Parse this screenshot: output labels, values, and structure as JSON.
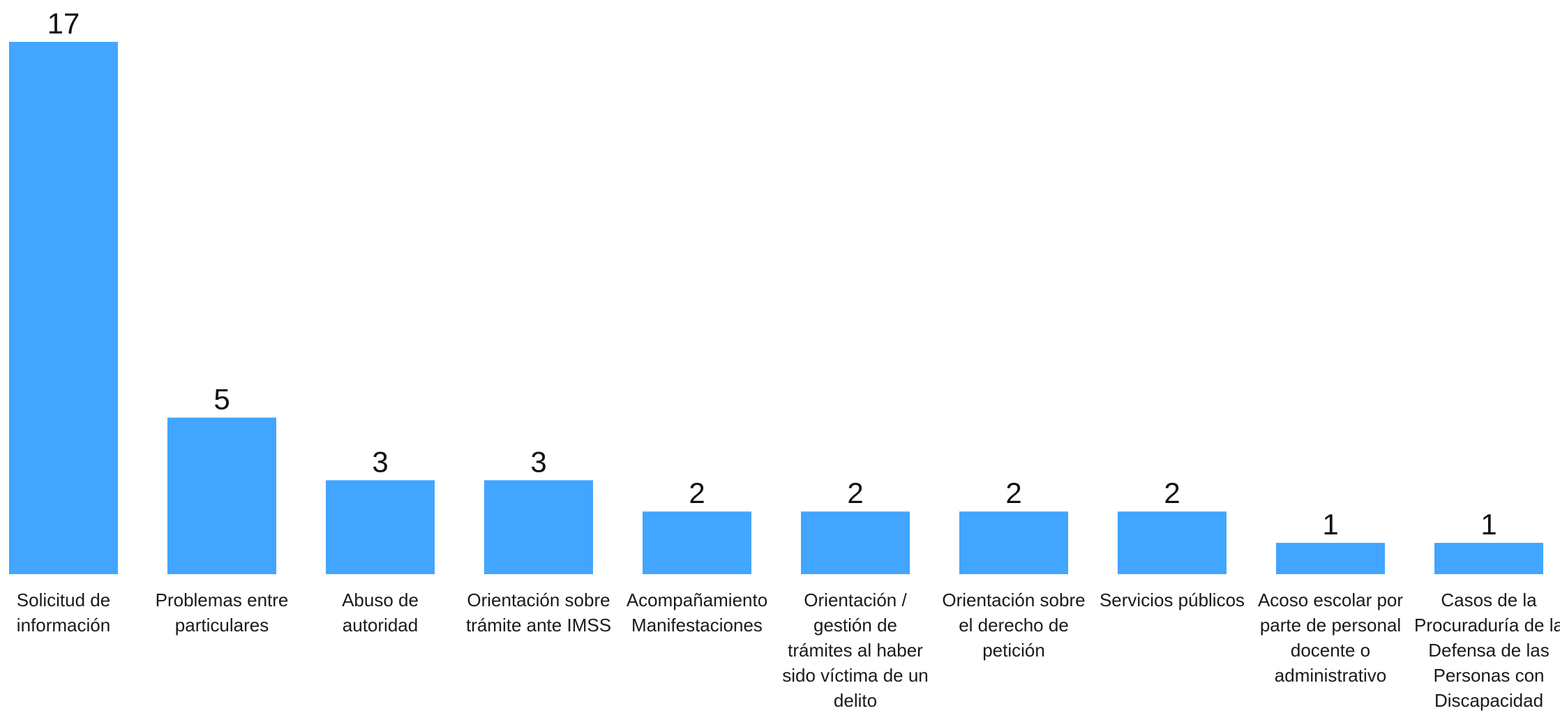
{
  "chart_data": {
    "type": "bar",
    "title": "",
    "xlabel": "",
    "ylabel": "",
    "ylim": [
      0,
      17
    ],
    "grid": false,
    "bar_color": "#42A5FF",
    "categories": [
      "Solicitud de información",
      "Problemas entre particulares",
      "Abuso de autoridad",
      "Orientación sobre trámite ante IMSS",
      "Acompañamiento Manifestaciones",
      "Orientación / gestión de trámites al haber sido víctima de un delito",
      "Orientación sobre el derecho de petición",
      "Servicios públicos",
      "Acoso escolar por parte de personal docente o administrativo",
      "Casos de la Procuraduría de la Defensa de las Personas con Discapacidad"
    ],
    "values": [
      17,
      5,
      3,
      3,
      2,
      2,
      2,
      2,
      1,
      1
    ],
    "data_labels": [
      "17",
      "5",
      "3",
      "3",
      "2",
      "2",
      "2",
      "2",
      "1",
      "1"
    ]
  }
}
